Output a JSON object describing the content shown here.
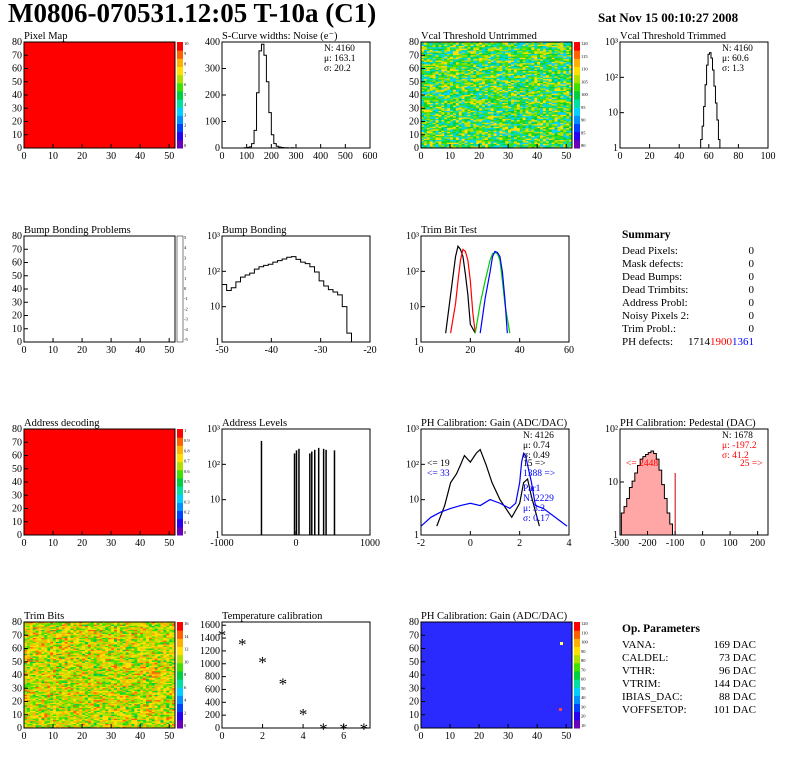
{
  "header": {
    "title": "M0806-070531.12:05 T-10a (C1)",
    "date": "Sat Nov 15 00:10:27 2008"
  },
  "colors": {
    "black": "#000000",
    "red": "#ff0000",
    "green": "#00cc00",
    "blue": "#0000ff",
    "dark_red": "#cc0000",
    "map_background": "#ff0000",
    "uniform_blue_map": "#2a2aff"
  },
  "palette": [
    "#6a00b8",
    "#2a00f0",
    "#0040ff",
    "#0090ff",
    "#00d0ff",
    "#00e0a0",
    "#00d040",
    "#40e000",
    "#b0e000",
    "#ffe000",
    "#ffb000",
    "#ff6000",
    "#ff0000"
  ],
  "panels": [
    {
      "title": "Pixel Map",
      "kind": "map",
      "map_style": "uniform_red",
      "xticks": [
        "0",
        "10",
        "20",
        "30",
        "40",
        "50"
      ],
      "yticks": [
        "0",
        "10",
        "20",
        "30",
        "40",
        "50",
        "60",
        "70",
        "80"
      ],
      "zticks": [
        "10",
        "9",
        "8",
        "7",
        "6",
        "5",
        "4",
        "3",
        "2",
        "1",
        "0"
      ]
    },
    {
      "title": "S-Curve widths: Noise (e⁻)",
      "kind": "hist1d",
      "stats": [
        "N: 4160",
        "μ: 163.1",
        "σ: 20.2"
      ],
      "xticks": [
        "0",
        "100",
        "200",
        "300",
        "400",
        "500",
        "600"
      ],
      "yticks": [
        "0",
        "100",
        "200",
        "300",
        "400"
      ]
    },
    {
      "title": "Vcal Threshold Untrimmed",
      "kind": "map",
      "map_style": "noisy_wide",
      "xticks": [
        "0",
        "10",
        "20",
        "30",
        "40",
        "50"
      ],
      "yticks": [
        "0",
        "10",
        "20",
        "30",
        "40",
        "50",
        "60",
        "70",
        "80"
      ],
      "zticks": [
        "120",
        "115",
        "110",
        "105",
        "100",
        "95",
        "90",
        "85",
        "80"
      ]
    },
    {
      "title": "Vcal Threshold Trimmed",
      "kind": "hist1d",
      "stats": [
        "N: 4160",
        "μ: 60.6",
        "σ:  1.3"
      ],
      "xticks": [
        "0",
        "20",
        "40",
        "60",
        "80",
        "100"
      ],
      "yticks": [
        "1",
        "10",
        "10²",
        "10³"
      ]
    },
    {
      "title": "Bump Bonding Problems",
      "kind": "map",
      "map_style": "empty",
      "xticks": [
        "0",
        "10",
        "20",
        "30",
        "40",
        "50"
      ],
      "yticks": [
        "0",
        "10",
        "20",
        "30",
        "40",
        "50",
        "60",
        "70",
        "80"
      ],
      "zticks": [
        "5",
        "4",
        "3",
        "2",
        "1",
        "0",
        "-1",
        "-2",
        "-3",
        "-4",
        "-5"
      ]
    },
    {
      "title": "Bump Bonding",
      "kind": "hist1d",
      "xticks": [
        "-50",
        "-40",
        "-30",
        "-20"
      ],
      "yticks": [
        "1",
        "10",
        "10²",
        "10³"
      ]
    },
    {
      "title": "Trim Bit Test",
      "kind": "hist1d",
      "xticks": [
        "0",
        "20",
        "40",
        "60"
      ],
      "yticks": [
        "1",
        "10",
        "10²",
        "10³"
      ]
    },
    {
      "title": "",
      "kind": "summary"
    },
    {
      "title": "Address decoding",
      "kind": "map",
      "map_style": "uniform_red",
      "xticks": [
        "0",
        "10",
        "20",
        "30",
        "40",
        "50"
      ],
      "yticks": [
        "0",
        "10",
        "20",
        "30",
        "40",
        "50",
        "60",
        "70",
        "80"
      ],
      "zticks": [
        "1",
        "0.9",
        "0.8",
        "0.7",
        "0.6",
        "0.5",
        "0.4",
        "0.3",
        "0.2",
        "0.1",
        "0"
      ]
    },
    {
      "title": "Address Levels",
      "kind": "hist1d",
      "xticks": [
        "-1000",
        "0",
        "1000"
      ],
      "yticks": [
        "1",
        "10",
        "10²",
        "10³"
      ]
    },
    {
      "title": "PH Calibration: Gain (ADC/DAC)",
      "kind": "hist1d",
      "stats": [
        "N: 4126",
        "μ: 0.74",
        "σ: 0.49"
      ],
      "stats2": [
        "Par1",
        "N: 2229",
        "μ: 3.2",
        "σ: 0.17"
      ],
      "notes": [
        "<= 19",
        "<= 33",
        "15 =>",
        "1388 =>"
      ],
      "xticks": [
        "-2",
        "0",
        "2",
        "4"
      ],
      "yticks": [
        "1",
        "10",
        "10²",
        "10³"
      ]
    },
    {
      "title": "PH Calibration: Pedestal (DAC)",
      "kind": "hist1d",
      "stats": [
        "N: 1678",
        "μ: -197.2",
        "σ: 41.2"
      ],
      "notes": [
        "<= 2448",
        "25 =>"
      ],
      "xticks": [
        "-300",
        "-200",
        "-100",
        "0",
        "100",
        "200"
      ],
      "yticks": [
        "1",
        "10",
        "10²"
      ]
    },
    {
      "title": "Trim Bits",
      "kind": "map",
      "map_style": "noisy_trim",
      "xticks": [
        "0",
        "10",
        "20",
        "30",
        "40",
        "50"
      ],
      "yticks": [
        "0",
        "10",
        "20",
        "30",
        "40",
        "50",
        "60",
        "70",
        "80"
      ],
      "zticks": [
        "16",
        "14",
        "12",
        "10",
        "8",
        "6",
        "4",
        "2",
        "0"
      ]
    },
    {
      "title": "Temperature calibration",
      "kind": "scatter",
      "xticks": [
        "0",
        "2",
        "4",
        "6"
      ],
      "yticks": [
        "0",
        "200",
        "400",
        "600",
        "800",
        "1000",
        "1200",
        "1400",
        "1600"
      ]
    },
    {
      "title": "PH Calibration: Gain (ADC/DAC)",
      "kind": "map",
      "map_style": "uniform_blue",
      "xticks": [
        "0",
        "10",
        "20",
        "30",
        "40",
        "50"
      ],
      "yticks": [
        "0",
        "10",
        "20",
        "30",
        "40",
        "50",
        "60",
        "70",
        "80"
      ],
      "zticks": [
        "120",
        "110",
        "100",
        "90",
        "80",
        "70",
        "60",
        "50",
        "40",
        "30",
        "20",
        "10"
      ]
    },
    {
      "title": "",
      "kind": "params"
    }
  ],
  "summary": {
    "title": "Summary",
    "rows": [
      {
        "label": "Dead Pixels:",
        "value": "0"
      },
      {
        "label": "Mask defects:",
        "value": "0"
      },
      {
        "label": "Dead Bumps:",
        "value": "0"
      },
      {
        "label": "Dead Trimbits:",
        "value": "0"
      },
      {
        "label": "Address Probl:",
        "value": "0"
      },
      {
        "label": "Noisy Pixels 2:",
        "value": "0"
      },
      {
        "label": "Trim Probl.:",
        "value": "0"
      }
    ],
    "ph_label": "PH defects:",
    "ph_values": [
      "1714",
      "1900",
      "1361"
    ]
  },
  "op_params": {
    "title": "Op. Parameters",
    "rows": [
      {
        "label": "VANA:",
        "value": "169 DAC"
      },
      {
        "label": "CALDEL:",
        "value": "73 DAC"
      },
      {
        "label": "VTHR:",
        "value": "96 DAC"
      },
      {
        "label": "VTRIM:",
        "value": "144 DAC"
      },
      {
        "label": "IBIAS_DAC:",
        "value": "88 DAC"
      },
      {
        "label": "VOFFSETOP:",
        "value": "101 DAC"
      }
    ]
  },
  "chart_data": [
    {
      "panel": "S-Curve widths: Noise (e⁻)",
      "type": "bar",
      "log": false,
      "xlim": [
        0,
        600
      ],
      "ylim": [
        0,
        480
      ],
      "x": [
        95,
        105,
        115,
        125,
        135,
        145,
        155,
        165,
        175,
        185,
        195,
        205,
        215,
        225,
        235,
        245,
        255,
        265,
        275,
        285
      ],
      "y": [
        1,
        2,
        5,
        20,
        80,
        250,
        440,
        470,
        420,
        300,
        160,
        60,
        20,
        8,
        4,
        2,
        1,
        1,
        0,
        1
      ]
    },
    {
      "panel": "Vcal Threshold Trimmed",
      "type": "bar",
      "log": true,
      "xlim": [
        0,
        100
      ],
      "ylim": [
        0.5,
        3000
      ],
      "x": [
        55,
        56,
        57,
        58,
        59,
        60,
        61,
        62,
        63,
        64,
        65,
        66,
        67
      ],
      "y": [
        1,
        3,
        15,
        90,
        450,
        1100,
        1250,
        800,
        300,
        80,
        20,
        5,
        1
      ]
    },
    {
      "panel": "Bump Bonding",
      "type": "bar",
      "log": true,
      "xlim": [
        -50,
        -18
      ],
      "ylim": [
        0.5,
        2000
      ],
      "x": [
        -49.5,
        -48.5,
        -47.5,
        -46.5,
        -45.5,
        -44.5,
        -43.5,
        -42.5,
        -41.5,
        -40.5,
        -39.5,
        -38.5,
        -37.5,
        -36.5,
        -35.5,
        -34.5,
        -33.5,
        -32.5,
        -31.5,
        -30.5,
        -29.5,
        -28.5,
        -27.5,
        -26.5,
        -25.5,
        -24.5,
        -23.5,
        -22.5
      ],
      "y": [
        45,
        28,
        35,
        55,
        80,
        95,
        110,
        150,
        180,
        200,
        220,
        260,
        290,
        330,
        380,
        400,
        320,
        260,
        230,
        180,
        120,
        60,
        40,
        30,
        25,
        20,
        8,
        1
      ]
    },
    {
      "panel": "Trim Bit Test",
      "type": "line",
      "log": true,
      "xlim": [
        0,
        60
      ],
      "ylim": [
        0.5,
        2000
      ],
      "series": [
        {
          "color": "#000000",
          "x": [
            10,
            12,
            14,
            15,
            16,
            17,
            18,
            19,
            20,
            22
          ],
          "y": [
            1,
            20,
            400,
            900,
            700,
            400,
            100,
            20,
            2,
            1
          ]
        },
        {
          "color": "#ff0000",
          "x": [
            12,
            14,
            15,
            16,
            17,
            18,
            19,
            20,
            21,
            22
          ],
          "y": [
            1,
            10,
            60,
            300,
            700,
            600,
            300,
            60,
            5,
            1
          ]
        },
        {
          "color": "#00cc00",
          "x": [
            22,
            24,
            26,
            28,
            29,
            30,
            31,
            32,
            33,
            34,
            36
          ],
          "y": [
            1,
            10,
            60,
            300,
            500,
            550,
            500,
            300,
            60,
            10,
            1
          ]
        },
        {
          "color": "#0000ff",
          "x": [
            24,
            26,
            28,
            29,
            30,
            31,
            32,
            33,
            34,
            35
          ],
          "y": [
            1,
            15,
            120,
            400,
            600,
            550,
            400,
            120,
            15,
            1
          ]
        }
      ]
    },
    {
      "panel": "Address Levels",
      "type": "spikes",
      "log": true,
      "xlim": [
        -1500,
        1500
      ],
      "ylim": [
        0.5,
        1200
      ],
      "x": [
        -700,
        -30,
        10,
        60,
        280,
        320,
        380,
        460,
        560,
        610,
        780
      ],
      "y": [
        500,
        200,
        250,
        280,
        200,
        230,
        260,
        300,
        280,
        260,
        250
      ]
    },
    {
      "panel": "PH Calibration: Gain (ADC/DAC)",
      "type": "line",
      "log": true,
      "xlim": [
        -2,
        5.5
      ],
      "ylim": [
        0.5,
        2000
      ],
      "series": [
        {
          "color": "#000000",
          "x": [
            -1.2,
            -0.8,
            -0.5,
            -0.2,
            0,
            0.2,
            0.5,
            0.8,
            1.0,
            1.3,
            1.6,
            2.0,
            2.6,
            3.0,
            3.2,
            3.4,
            3.6,
            4.0
          ],
          "y": [
            1,
            5,
            30,
            60,
            120,
            250,
            150,
            300,
            400,
            120,
            30,
            8,
            2,
            6,
            30,
            40,
            10,
            1
          ]
        },
        {
          "color": "#0000ff",
          "x": [
            -2,
            -1.5,
            -1,
            -0.5,
            0,
            0.5,
            1,
            1.5,
            2,
            2.5,
            2.8,
            3.0,
            3.1,
            3.2,
            3.3,
            3.4,
            3.6,
            3.8,
            4.2,
            4.8,
            5.4
          ],
          "y": [
            1,
            2,
            3,
            4,
            5,
            6,
            5,
            8,
            6,
            4,
            6,
            30,
            150,
            300,
            250,
            120,
            30,
            5,
            4,
            2,
            1
          ]
        }
      ]
    },
    {
      "panel": "PH Calibration: Pedestal (DAC)",
      "type": "bar",
      "log": true,
      "xlim": [
        -300,
        250
      ],
      "ylim": [
        0.5,
        400
      ],
      "x": [
        -290,
        -280,
        -270,
        -260,
        -250,
        -240,
        -230,
        -220,
        -210,
        -200,
        -190,
        -180,
        -170,
        -160,
        -150,
        -140,
        -130,
        -120,
        -110
      ],
      "y": [
        2,
        3,
        5,
        10,
        15,
        25,
        40,
        60,
        70,
        80,
        90,
        100,
        85,
        60,
        30,
        12,
        5,
        2,
        1
      ]
    },
    {
      "panel": "Temperature calibration",
      "type": "scatter",
      "xlim": [
        0,
        7.3
      ],
      "ylim": [
        0,
        1650
      ],
      "x": [
        0,
        1,
        2,
        3,
        4,
        5,
        6,
        7
      ],
      "y": [
        1480,
        1340,
        1060,
        720,
        250,
        20,
        20,
        20
      ]
    }
  ]
}
